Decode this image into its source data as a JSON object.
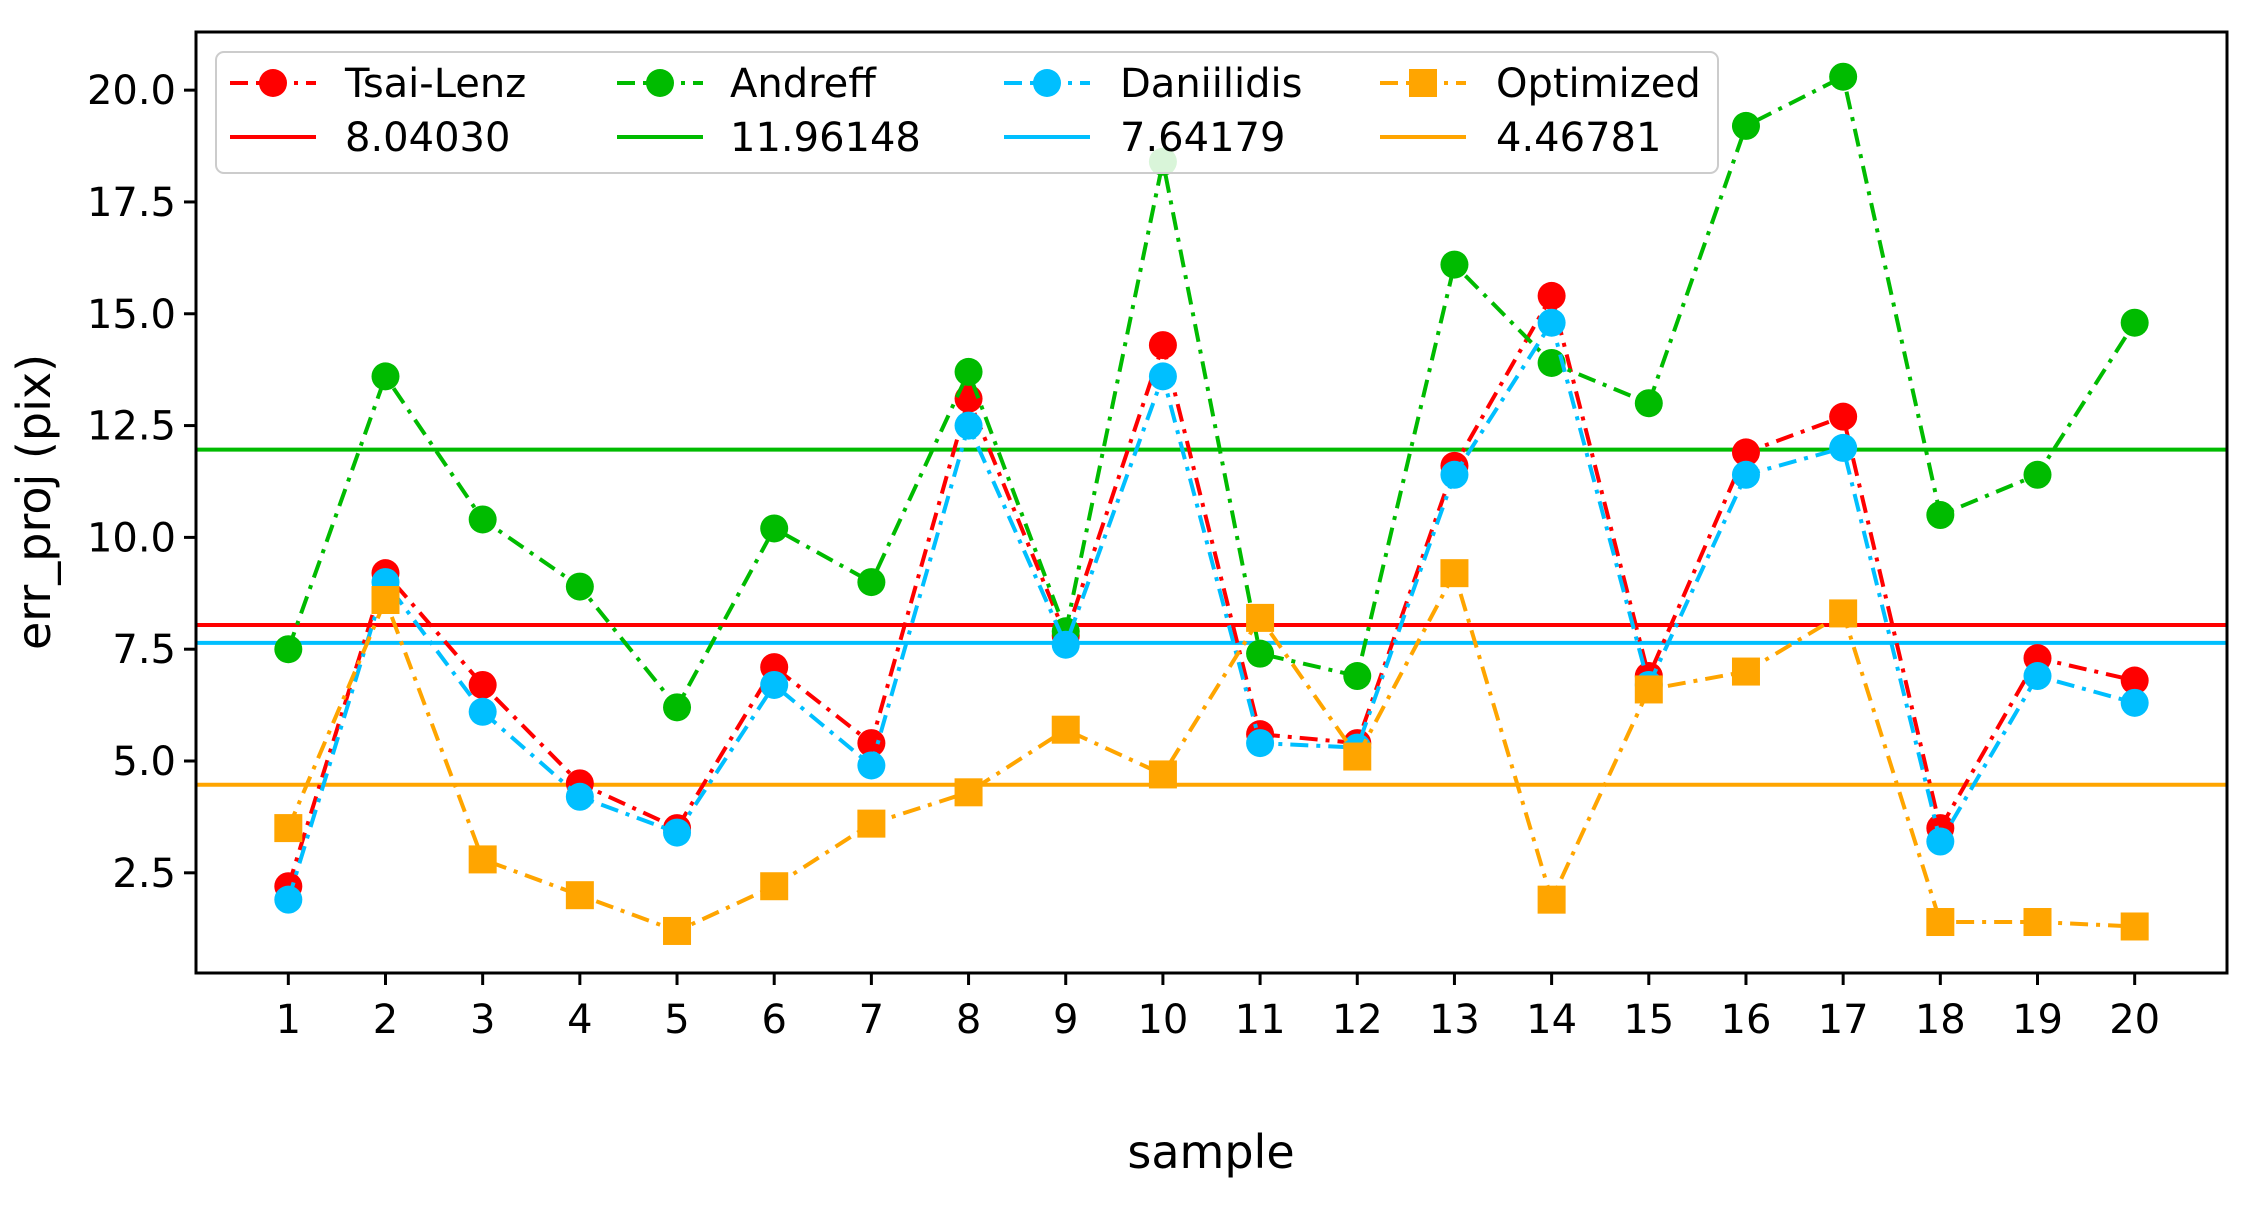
{
  "chart_data": {
    "type": "line",
    "title": "",
    "xlabel": "sample",
    "ylabel": "err_proj (pix)",
    "x": [
      1,
      2,
      3,
      4,
      5,
      6,
      7,
      8,
      9,
      10,
      11,
      12,
      13,
      14,
      15,
      16,
      17,
      18,
      19,
      20
    ],
    "xlim": [
      0.05,
      20.95
    ],
    "ylim": [
      0.26,
      21.3
    ],
    "yticks": [
      "2.5",
      "5.0",
      "7.5",
      "10.0",
      "12.5",
      "15.0",
      "17.5",
      "20.0"
    ],
    "xticks": [
      "1",
      "2",
      "3",
      "4",
      "5",
      "6",
      "7",
      "8",
      "9",
      "10",
      "11",
      "12",
      "13",
      "14",
      "15",
      "16",
      "17",
      "18",
      "19",
      "20"
    ],
    "grid": false,
    "legend_placement": "top-left",
    "series": [
      {
        "name": "Tsai-Lenz",
        "color": "#ff0000",
        "marker": "circle",
        "linestyle": "dashdot",
        "values": [
          2.2,
          9.2,
          6.7,
          4.5,
          3.5,
          7.1,
          5.4,
          13.1,
          7.8,
          14.3,
          5.6,
          5.4,
          11.6,
          15.4,
          6.9,
          11.9,
          12.7,
          3.5,
          7.3,
          6.8
        ],
        "mean": 8.0403,
        "mean_label": "8.04030"
      },
      {
        "name": "Andreff",
        "color": "#00bb00",
        "marker": "circle",
        "linestyle": "dashdot",
        "values": [
          7.5,
          13.6,
          10.4,
          8.9,
          6.2,
          10.2,
          9.0,
          13.7,
          7.9,
          18.4,
          7.4,
          6.9,
          16.1,
          13.9,
          13.0,
          19.2,
          20.3,
          10.5,
          11.4,
          14.8
        ],
        "mean": 11.96148,
        "mean_label": "11.96148"
      },
      {
        "name": "Daniilidis",
        "color": "#00bfff",
        "marker": "circle",
        "linestyle": "dashdot",
        "values": [
          1.9,
          9.0,
          6.1,
          4.2,
          3.4,
          6.7,
          4.9,
          12.5,
          7.6,
          13.6,
          5.4,
          5.3,
          11.4,
          14.8,
          6.7,
          11.4,
          12.0,
          3.2,
          6.9,
          6.3
        ],
        "mean": 7.64179,
        "mean_label": "7.64179"
      },
      {
        "name": "Optimized",
        "color": "#ffa500",
        "marker": "square",
        "linestyle": "dashdot",
        "values": [
          3.5,
          8.6,
          2.8,
          2.0,
          1.2,
          2.2,
          3.6,
          4.3,
          5.7,
          4.7,
          8.2,
          5.1,
          9.2,
          1.9,
          6.6,
          7.0,
          8.3,
          1.4,
          1.4,
          1.3
        ],
        "mean": 4.46781,
        "mean_label": "4.46781"
      }
    ]
  }
}
